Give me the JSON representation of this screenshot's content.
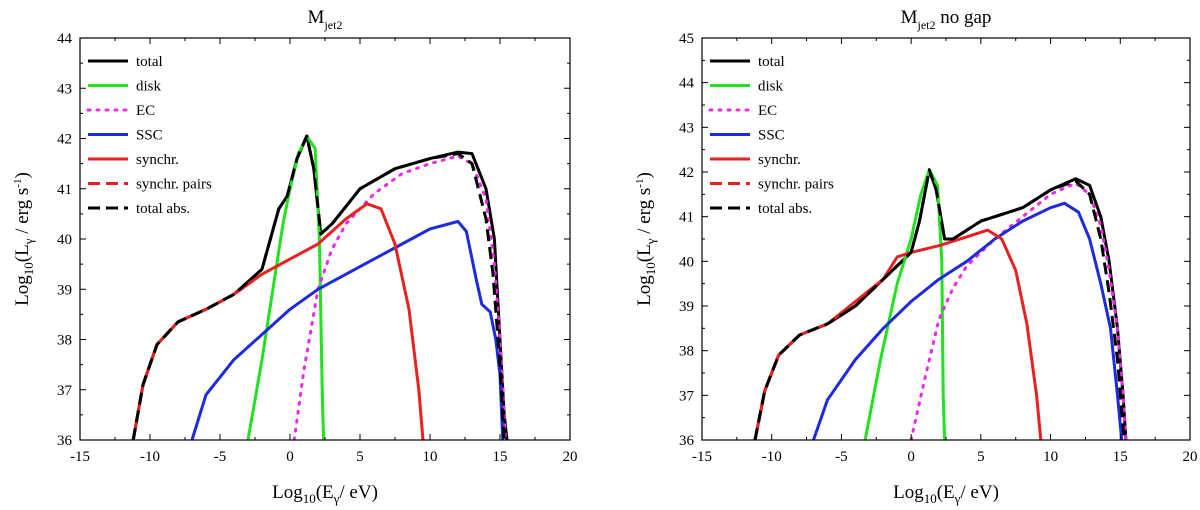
{
  "chart_data": [
    {
      "type": "line",
      "title": "M",
      "title_sub": "jet2",
      "title_rest": "",
      "xlabel": {
        "pre": "Log",
        "sub1": "10",
        "mid": "(E",
        "sub2": "γ",
        "post": "/ eV)"
      },
      "ylabel": {
        "pre": "Log",
        "sub1": "10",
        "mid": "(L",
        "sub2": "γ",
        "post": " / erg s",
        "sup": "-1",
        "end": ")"
      },
      "xlim": [
        -15,
        20
      ],
      "ylim": [
        36,
        44
      ],
      "xticks": [
        -15,
        -10,
        -5,
        0,
        5,
        10,
        15,
        20
      ],
      "yticks": [
        36,
        37,
        38,
        39,
        40,
        41,
        42,
        43,
        44
      ],
      "legend": [
        {
          "key": "total",
          "label": "total"
        },
        {
          "key": "disk",
          "label": "disk"
        },
        {
          "key": "ec",
          "label": "EC"
        },
        {
          "key": "ssc",
          "label": "SSC"
        },
        {
          "key": "synchr",
          "label": "synchr."
        },
        {
          "key": "pairs",
          "label": "synchr. pairs"
        },
        {
          "key": "totabs",
          "label": "total abs."
        }
      ],
      "series": [
        {
          "key": "total",
          "name": "total",
          "color": "#000000",
          "dash": "solid",
          "points": [
            [
              -11.2,
              36
            ],
            [
              -10.5,
              37.1
            ],
            [
              -9.5,
              37.9
            ],
            [
              -8,
              38.35
            ],
            [
              -6,
              38.6
            ],
            [
              -4,
              38.9
            ],
            [
              -2,
              39.4
            ],
            [
              -1.5,
              39.9
            ],
            [
              -0.8,
              40.6
            ],
            [
              -0.2,
              40.85
            ],
            [
              0.5,
              41.6
            ],
            [
              1.2,
              42.05
            ],
            [
              1.7,
              41.4
            ],
            [
              2.2,
              40.1
            ],
            [
              3,
              40.3
            ],
            [
              5,
              41
            ],
            [
              7.5,
              41.4
            ],
            [
              10,
              41.6
            ],
            [
              12,
              41.73
            ],
            [
              13,
              41.7
            ],
            [
              14,
              41
            ],
            [
              14.6,
              40
            ],
            [
              15,
              38
            ],
            [
              15.3,
              36.5
            ],
            [
              15.5,
              36
            ]
          ]
        },
        {
          "key": "disk",
          "name": "disk",
          "color": "#22e022",
          "dash": "solid",
          "points": [
            [
              -3,
              36
            ],
            [
              -2,
              37.6
            ],
            [
              -1,
              39.4
            ],
            [
              -0.5,
              40.3
            ],
            [
              0,
              41
            ],
            [
              0.6,
              41.7
            ],
            [
              1.2,
              42.05
            ],
            [
              1.8,
              41.8
            ],
            [
              2.1,
              40
            ],
            [
              2.3,
              37
            ],
            [
              2.4,
              36
            ]
          ]
        },
        {
          "key": "ec",
          "name": "EC",
          "color": "#ea2ae8",
          "dash": "dotted",
          "points": [
            [
              0.3,
              36
            ],
            [
              1,
              37.4
            ],
            [
              2,
              39
            ],
            [
              3,
              39.8
            ],
            [
              4,
              40.3
            ],
            [
              6,
              40.9
            ],
            [
              8,
              41.3
            ],
            [
              10,
              41.5
            ],
            [
              12,
              41.65
            ],
            [
              13,
              41.5
            ],
            [
              14,
              40.8
            ],
            [
              14.6,
              39.5
            ],
            [
              15,
              38
            ],
            [
              15.3,
              36.5
            ],
            [
              15.4,
              36
            ]
          ]
        },
        {
          "key": "ssc",
          "name": "SSC",
          "color": "#1c2be0",
          "dash": "solid",
          "points": [
            [
              -7,
              36
            ],
            [
              -6,
              36.9
            ],
            [
              -4,
              37.6
            ],
            [
              -2,
              38.1
            ],
            [
              0,
              38.6
            ],
            [
              2,
              39
            ],
            [
              4,
              39.3
            ],
            [
              6,
              39.6
            ],
            [
              8,
              39.9
            ],
            [
              10,
              40.2
            ],
            [
              12,
              40.35
            ],
            [
              12.6,
              40.15
            ],
            [
              13.3,
              39.2
            ],
            [
              13.7,
              38.7
            ],
            [
              14.3,
              38.55
            ],
            [
              14.7,
              38
            ],
            [
              15,
              37.3
            ],
            [
              15.2,
              36
            ]
          ]
        },
        {
          "key": "synchr",
          "name": "synchr.",
          "color": "#e82020",
          "dash": "solid",
          "points": [
            [
              -11.2,
              36
            ],
            [
              -10.5,
              37.1
            ],
            [
              -9.5,
              37.9
            ],
            [
              -8,
              38.35
            ],
            [
              -6,
              38.6
            ],
            [
              -4,
              38.9
            ],
            [
              -2,
              39.3
            ],
            [
              0,
              39.6
            ],
            [
              2,
              39.9
            ],
            [
              4,
              40.4
            ],
            [
              5.5,
              40.7
            ],
            [
              6.5,
              40.6
            ],
            [
              7.5,
              39.9
            ],
            [
              8.5,
              38.6
            ],
            [
              9.2,
              37
            ],
            [
              9.5,
              36
            ]
          ]
        },
        {
          "key": "pairs",
          "name": "synchr. pairs",
          "color": "#e82020",
          "dash": "dashed",
          "points": [
            [
              -11.2,
              36
            ],
            [
              -10.5,
              37.1
            ],
            [
              -9.5,
              37.9
            ],
            [
              -8,
              38.35
            ],
            [
              -6,
              38.6
            ]
          ]
        },
        {
          "key": "totabs",
          "name": "total abs.",
          "color": "#000000",
          "dash": "dashed",
          "points": [
            [
              -11.2,
              36
            ],
            [
              -10.5,
              37.1
            ],
            [
              -9.5,
              37.9
            ],
            [
              -8,
              38.35
            ],
            [
              -6,
              38.6
            ],
            [
              -4,
              38.9
            ],
            [
              -2,
              39.4
            ],
            [
              -1.5,
              39.9
            ],
            [
              -0.8,
              40.6
            ],
            [
              -0.2,
              40.85
            ],
            [
              0.5,
              41.6
            ],
            [
              1.2,
              42.05
            ],
            [
              1.7,
              41.4
            ],
            [
              2.2,
              40.1
            ],
            [
              3,
              40.3
            ],
            [
              5,
              41
            ],
            [
              7.5,
              41.4
            ],
            [
              10,
              41.6
            ],
            [
              12,
              41.7
            ],
            [
              13,
              41.5
            ],
            [
              14,
              40.4
            ],
            [
              14.5,
              39.3
            ],
            [
              15,
              37.5
            ],
            [
              15.3,
              36
            ]
          ]
        }
      ]
    },
    {
      "type": "line",
      "title": "M",
      "title_sub": "jet2",
      "title_rest": " no gap",
      "xlabel": {
        "pre": "Log",
        "sub1": "10",
        "mid": "(E",
        "sub2": "γ",
        "post": "/ eV)"
      },
      "ylabel": {
        "pre": "Log",
        "sub1": "10",
        "mid": "(L",
        "sub2": "γ",
        "post": " / erg s",
        "sup": "-1",
        "end": ")"
      },
      "xlim": [
        -15,
        20
      ],
      "ylim": [
        36,
        45
      ],
      "xticks": [
        -15,
        -10,
        -5,
        0,
        5,
        10,
        15,
        20
      ],
      "yticks": [
        36,
        37,
        38,
        39,
        40,
        41,
        42,
        43,
        44,
        45
      ],
      "legend": [
        {
          "key": "total",
          "label": "total"
        },
        {
          "key": "disk",
          "label": "disk"
        },
        {
          "key": "ec",
          "label": "EC"
        },
        {
          "key": "ssc",
          "label": "SSC"
        },
        {
          "key": "synchr",
          "label": "synchr."
        },
        {
          "key": "pairs",
          "label": "synchr. pairs"
        },
        {
          "key": "totabs",
          "label": "total abs."
        }
      ],
      "series": [
        {
          "key": "total",
          "name": "total",
          "color": "#000000",
          "dash": "solid",
          "points": [
            [
              -11.2,
              36
            ],
            [
              -10.5,
              37.1
            ],
            [
              -9.5,
              37.9
            ],
            [
              -8,
              38.35
            ],
            [
              -6,
              38.6
            ],
            [
              -4,
              39
            ],
            [
              -2,
              39.6
            ],
            [
              0,
              40.2
            ],
            [
              0.6,
              40.9
            ],
            [
              1.3,
              42.05
            ],
            [
              1.8,
              41.6
            ],
            [
              2.4,
              40.5
            ],
            [
              3,
              40.5
            ],
            [
              5,
              40.9
            ],
            [
              8,
              41.2
            ],
            [
              10,
              41.6
            ],
            [
              11.8,
              41.85
            ],
            [
              12.8,
              41.7
            ],
            [
              13.6,
              41
            ],
            [
              14.2,
              40
            ],
            [
              14.8,
              38.5
            ],
            [
              15.2,
              37
            ],
            [
              15.4,
              36
            ]
          ]
        },
        {
          "key": "disk",
          "name": "disk",
          "color": "#22e022",
          "dash": "solid",
          "points": [
            [
              -3.3,
              36
            ],
            [
              -2.2,
              37.8
            ],
            [
              -1,
              39.5
            ],
            [
              0,
              40.5
            ],
            [
              0.7,
              41.5
            ],
            [
              1.3,
              42.05
            ],
            [
              1.9,
              41.7
            ],
            [
              2.2,
              40
            ],
            [
              2.3,
              37
            ],
            [
              2.4,
              36
            ]
          ]
        },
        {
          "key": "ec",
          "name": "EC",
          "color": "#ea2ae8",
          "dash": "dotted",
          "points": [
            [
              0,
              36
            ],
            [
              1,
              37.4
            ],
            [
              2,
              38.7
            ],
            [
              3,
              39.4
            ],
            [
              4,
              39.9
            ],
            [
              6,
              40.5
            ],
            [
              8,
              41
            ],
            [
              10,
              41.5
            ],
            [
              11.8,
              41.75
            ],
            [
              12.8,
              41.5
            ],
            [
              13.6,
              40.8
            ],
            [
              14.2,
              39.8
            ],
            [
              14.8,
              38.5
            ],
            [
              15.2,
              37
            ],
            [
              15.4,
              36
            ]
          ]
        },
        {
          "key": "ssc",
          "name": "SSC",
          "color": "#1c2be0",
          "dash": "solid",
          "points": [
            [
              -7,
              36
            ],
            [
              -6,
              36.9
            ],
            [
              -4,
              37.8
            ],
            [
              -2,
              38.5
            ],
            [
              0,
              39.1
            ],
            [
              2,
              39.6
            ],
            [
              4,
              40
            ],
            [
              6,
              40.5
            ],
            [
              8,
              40.9
            ],
            [
              10,
              41.2
            ],
            [
              11,
              41.3
            ],
            [
              12,
              41.1
            ],
            [
              12.8,
              40.5
            ],
            [
              13.6,
              39.5
            ],
            [
              14.3,
              38.5
            ],
            [
              14.8,
              37
            ],
            [
              15.1,
              36
            ]
          ]
        },
        {
          "key": "synchr",
          "name": "synchr.",
          "color": "#e82020",
          "dash": "solid",
          "points": [
            [
              -11.2,
              36
            ],
            [
              -10.5,
              37.1
            ],
            [
              -9.5,
              37.9
            ],
            [
              -8,
              38.35
            ],
            [
              -6,
              38.6
            ],
            [
              -4,
              39.1
            ],
            [
              -2,
              39.6
            ],
            [
              -1,
              40.1
            ],
            [
              0,
              40.2
            ],
            [
              2,
              40.35
            ],
            [
              4,
              40.55
            ],
            [
              5.5,
              40.7
            ],
            [
              6.5,
              40.5
            ],
            [
              7.5,
              39.8
            ],
            [
              8.3,
              38.6
            ],
            [
              9,
              37
            ],
            [
              9.3,
              36
            ]
          ]
        },
        {
          "key": "pairs",
          "name": "synchr. pairs",
          "color": "#e82020",
          "dash": "dashed",
          "points": [
            [
              -11.2,
              36
            ],
            [
              -10.5,
              37.1
            ],
            [
              -9.5,
              37.9
            ],
            [
              -8,
              38.35
            ],
            [
              -6,
              38.6
            ]
          ]
        },
        {
          "key": "totabs",
          "name": "total abs.",
          "color": "#000000",
          "dash": "dashed",
          "points": [
            [
              -11.2,
              36
            ],
            [
              -10.5,
              37.1
            ],
            [
              -9.5,
              37.9
            ],
            [
              -8,
              38.35
            ],
            [
              -6,
              38.6
            ],
            [
              -4,
              39
            ],
            [
              -2,
              39.6
            ],
            [
              0,
              40.2
            ],
            [
              0.6,
              40.9
            ],
            [
              1.3,
              42.05
            ],
            [
              1.8,
              41.6
            ],
            [
              2.4,
              40.5
            ],
            [
              3,
              40.5
            ],
            [
              5,
              40.9
            ],
            [
              8,
              41.2
            ],
            [
              10,
              41.6
            ],
            [
              11.8,
              41.8
            ],
            [
              12.8,
              41.5
            ],
            [
              13.6,
              40.5
            ],
            [
              14.2,
              39.3
            ],
            [
              14.8,
              37.8
            ],
            [
              15.2,
              36.3
            ],
            [
              15.3,
              36
            ]
          ]
        }
      ]
    }
  ]
}
